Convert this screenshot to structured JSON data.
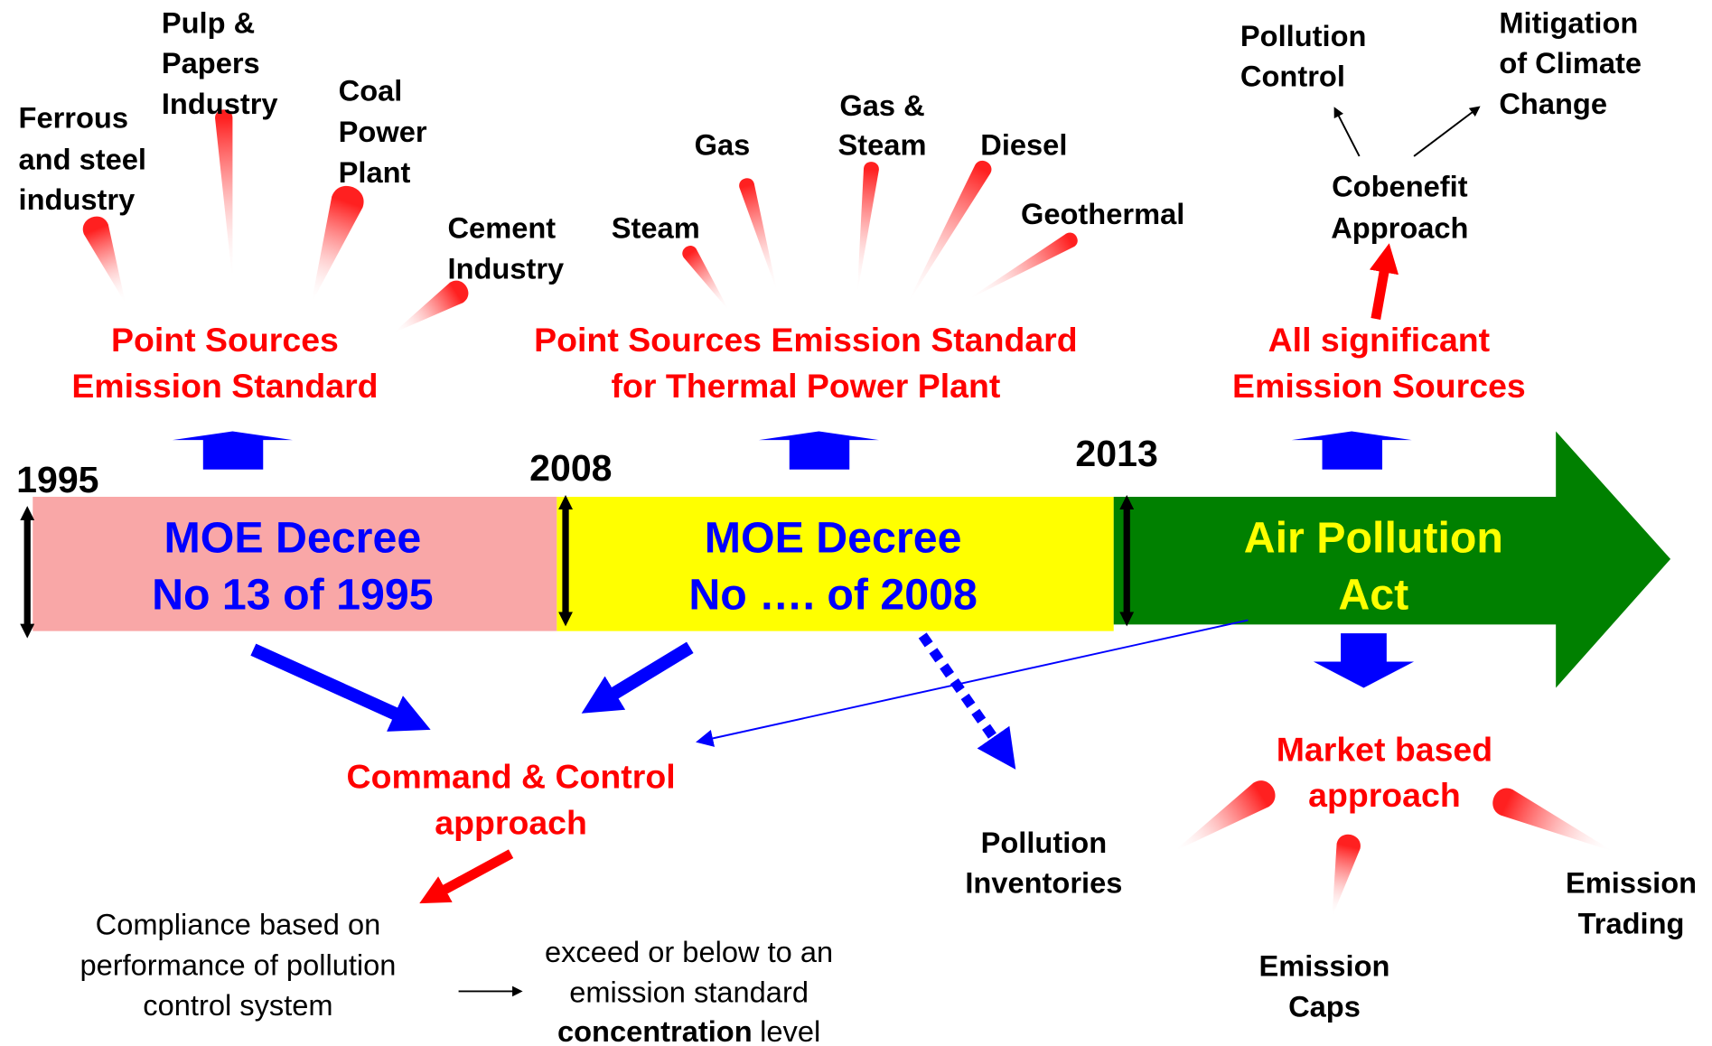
{
  "periods": [
    {
      "year": "1995",
      "decree": [
        "MOE Decree",
        "No 13 of  1995"
      ],
      "scope": [
        "Point Sources",
        "Emission Standard"
      ]
    },
    {
      "year": "2008",
      "decree": [
        "MOE Decree",
        "No …. of  2008"
      ],
      "scope": [
        "Point Sources Emission Standard",
        "for Thermal Power Plant"
      ]
    },
    {
      "year": "2013",
      "decree": [
        "Air Pollution",
        "Act"
      ],
      "scope": [
        "All significant",
        "Emission Sources"
      ]
    }
  ],
  "industries": [
    [
      "Ferrous",
      "and steel",
      "industry"
    ],
    [
      "Pulp &",
      "Papers",
      "Industry"
    ],
    [
      "Coal",
      "Power",
      "Plant"
    ],
    [
      "Cement",
      "Industry"
    ]
  ],
  "power_plants": [
    [
      "Steam"
    ],
    [
      "Gas"
    ],
    [
      "Gas &",
      "Steam"
    ],
    [
      "Diesel"
    ],
    [
      "Geothermal"
    ]
  ],
  "cobenefit": {
    "label": [
      "Cobenefit",
      "Approach"
    ],
    "outcomes": [
      [
        "Pollution",
        "Control"
      ],
      [
        "Mitigation",
        "of Climate",
        "Change"
      ]
    ]
  },
  "command_control": {
    "label": [
      "Command & Control",
      "approach"
    ],
    "compliance": [
      "Compliance based on",
      "performance of pollution",
      "control system"
    ],
    "result": [
      "exceed or below to an",
      "emission  standard"
    ],
    "result_bold": "concentration",
    "result_tail": "level"
  },
  "inventories": [
    "Pollution",
    "Inventories"
  ],
  "market": {
    "label": [
      "Market based",
      "approach"
    ],
    "instruments": [
      [
        "Emission",
        "Caps"
      ],
      [
        "Emission",
        "Trading"
      ]
    ]
  }
}
